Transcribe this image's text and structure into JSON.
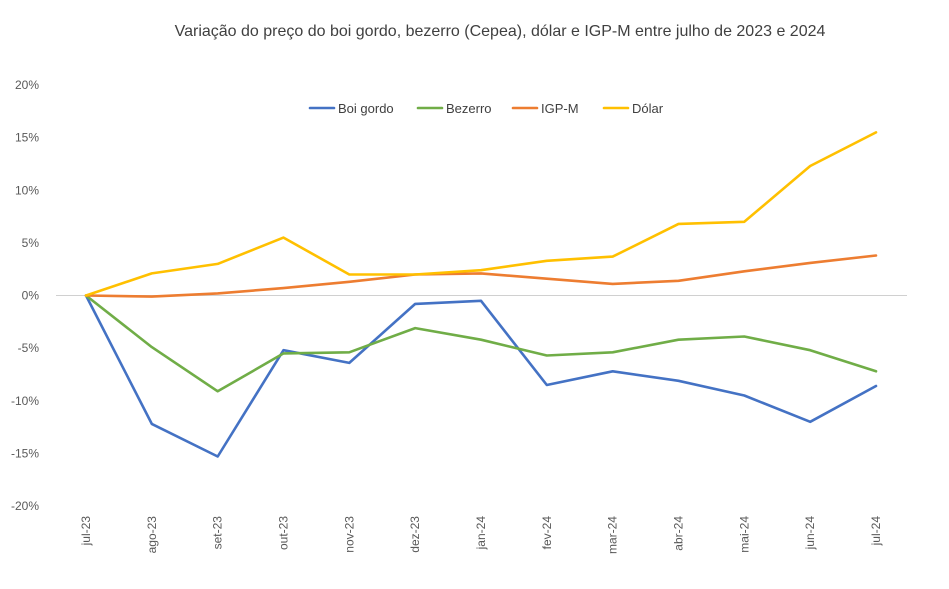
{
  "chart_data": {
    "type": "line",
    "title": "Variação do preço do boi gordo, bezerro (Cepea), dólar e IGP-M entre julho de 2023 e 2024",
    "xlabel": "",
    "ylabel": "",
    "categories": [
      "jul-23",
      "ago-23",
      "set-23",
      "out-23",
      "nov-23",
      "dez-23",
      "jan-24",
      "fev-24",
      "mar-24",
      "abr-24",
      "mai-24",
      "jun-24",
      "jul-24"
    ],
    "ylim": [
      -20,
      20
    ],
    "yticks": [
      20,
      15,
      10,
      5,
      0,
      -5,
      -10,
      -15,
      -20
    ],
    "ytick_labels": [
      "20%",
      "15%",
      "10%",
      "5%",
      "0%",
      "-5%",
      "-10%",
      "-15%",
      "-20%"
    ],
    "grid": false,
    "legend_position": "top",
    "series": [
      {
        "name": "Boi gordo",
        "color": "#4472C4",
        "values": [
          0,
          -12.2,
          -15.3,
          -5.2,
          -6.4,
          -0.8,
          -0.5,
          -8.5,
          -7.2,
          -8.1,
          -9.5,
          -12.0,
          -8.6
        ]
      },
      {
        "name": "Bezerro",
        "color": "#70AD47",
        "values": [
          0,
          -4.9,
          -9.1,
          -5.5,
          -5.4,
          -3.1,
          -4.2,
          -5.7,
          -5.4,
          -4.2,
          -3.9,
          -5.2,
          -7.2
        ]
      },
      {
        "name": "IGP-M",
        "color": "#ED7D31",
        "values": [
          0,
          -0.1,
          0.2,
          0.7,
          1.3,
          2.0,
          2.1,
          1.6,
          1.1,
          1.4,
          2.3,
          3.1,
          3.8
        ]
      },
      {
        "name": "Dólar",
        "color": "#FFC000",
        "values": [
          0,
          2.1,
          3.0,
          5.5,
          2.0,
          2.0,
          2.4,
          3.3,
          3.7,
          6.8,
          7.0,
          12.3,
          15.5
        ]
      }
    ]
  }
}
